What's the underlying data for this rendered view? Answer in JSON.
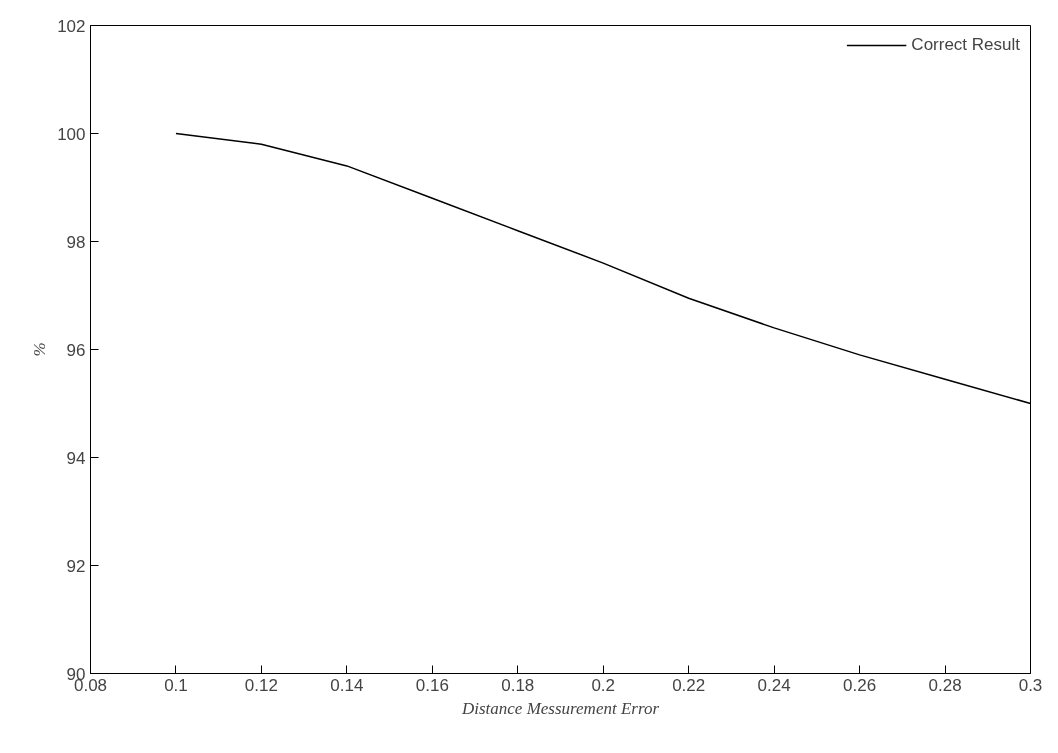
{
  "chart_data": {
    "type": "line",
    "xlabel": "Distance Messurement Error",
    "ylabel": "%",
    "x": [
      0.1,
      0.12,
      0.14,
      0.16,
      0.18,
      0.2,
      0.22,
      0.24,
      0.26,
      0.28,
      0.3
    ],
    "series": [
      {
        "name": "Correct Result",
        "color": "#000000",
        "values": [
          100,
          99.8,
          99.4,
          98.8,
          98.2,
          97.6,
          96.95,
          96.4,
          95.9,
          95.45,
          95.0
        ]
      }
    ],
    "xlim": [
      0.08,
      0.3
    ],
    "xticks": [
      0.08,
      0.1,
      0.12,
      0.14,
      0.16,
      0.18,
      0.2,
      0.22,
      0.24,
      0.26,
      0.28,
      0.3
    ],
    "ylim": [
      90,
      102
    ],
    "yticks": [
      90,
      92,
      94,
      96,
      98,
      100,
      102
    ],
    "grid": false,
    "legend": "top right",
    "line_style": "solid",
    "marker": "none"
  }
}
